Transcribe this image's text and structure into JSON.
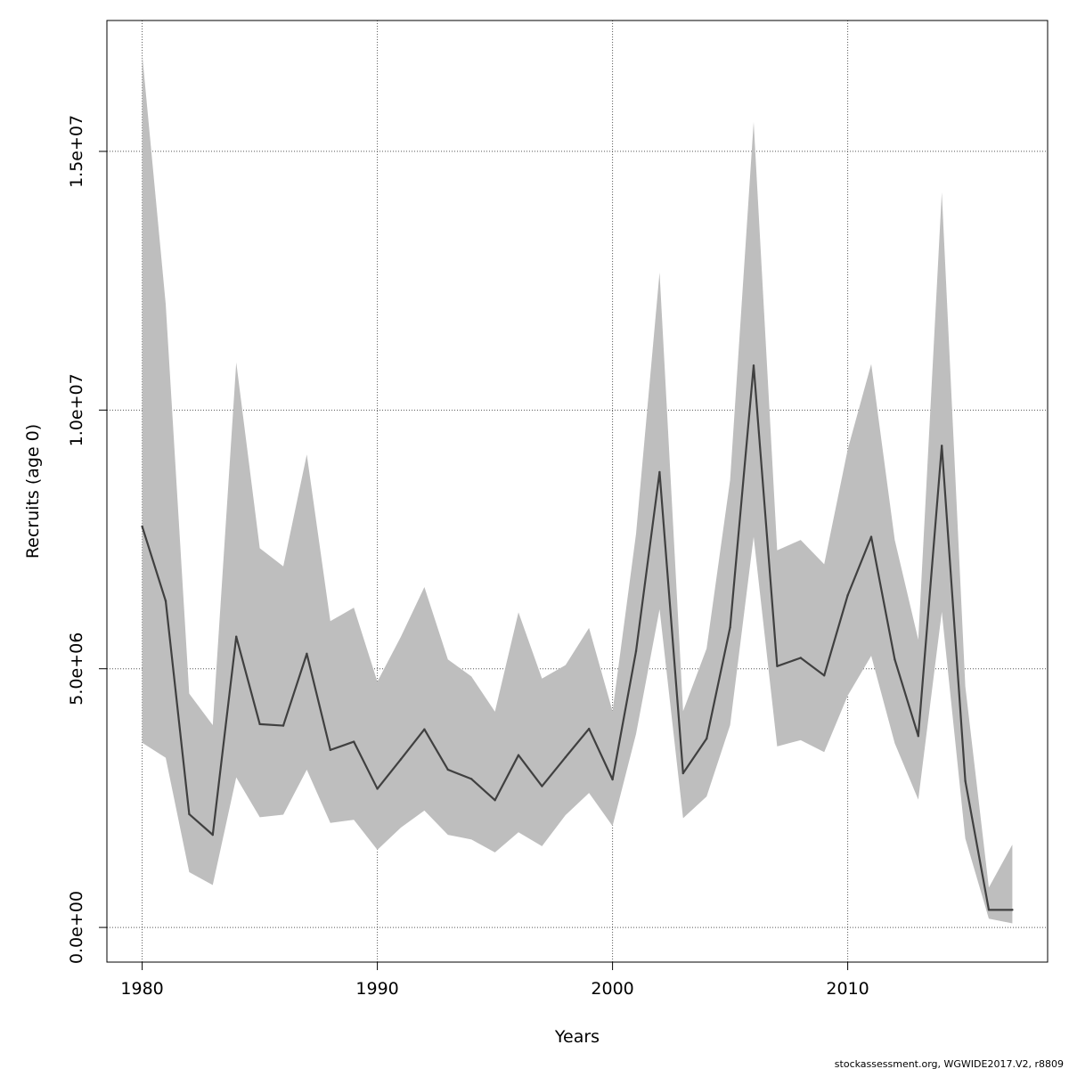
{
  "chart_data": {
    "type": "line",
    "title": "",
    "xlabel": "Years",
    "ylabel": "Recruits (age 0)",
    "xlim": [
      1978.5,
      2018.5
    ],
    "ylim": [
      -670000,
      17530000
    ],
    "x_ticks": [
      1980,
      1990,
      2000,
      2010
    ],
    "x_tick_labels": [
      "1980",
      "1990",
      "2000",
      "2010"
    ],
    "y_ticks": [
      0,
      5000000,
      10000000,
      15000000
    ],
    "y_tick_labels": [
      "0.0e+00",
      "5.0e+06",
      "1.0e+07",
      "1.5e+07"
    ],
    "grid": true,
    "years": [
      1980,
      1981,
      1982,
      1983,
      1984,
      1985,
      1986,
      1987,
      1988,
      1989,
      1990,
      1991,
      1992,
      1993,
      1994,
      1995,
      1996,
      1997,
      1998,
      1999,
      2000,
      2001,
      2002,
      2003,
      2004,
      2005,
      2006,
      2007,
      2008,
      2009,
      2010,
      2011,
      2012,
      2013,
      2014,
      2015,
      2016,
      2017
    ],
    "series": [
      {
        "values": [
          7750000,
          6310000,
          2190000,
          1790000,
          5620000,
          3930000,
          3900000,
          5290000,
          3430000,
          3590000,
          2680000,
          3250000,
          3830000,
          3050000,
          2870000,
          2460000,
          3330000,
          2730000,
          3290000,
          3840000,
          2860000,
          5340000,
          8800000,
          2980000,
          3650000,
          5800000,
          10860000,
          5050000,
          5210000,
          4870000,
          6420000,
          7550000,
          5180000,
          3700000,
          9310000,
          2830000,
          340000,
          340000
        ]
      }
    ],
    "band": {
      "upper": [
        16880000,
        12050000,
        4520000,
        3910000,
        10920000,
        7330000,
        6980000,
        9140000,
        5920000,
        6180000,
        4750000,
        5620000,
        6580000,
        5180000,
        4850000,
        4170000,
        6090000,
        4810000,
        5070000,
        5790000,
        4180000,
        7610000,
        12660000,
        4180000,
        5390000,
        8650000,
        15570000,
        7290000,
        7490000,
        7020000,
        9240000,
        10890000,
        7490000,
        5560000,
        14210000,
        4660000,
        770000,
        1600000
      ],
      "lower": [
        3570000,
        3280000,
        1070000,
        820000,
        2900000,
        2130000,
        2180000,
        3050000,
        2020000,
        2080000,
        1500000,
        1930000,
        2260000,
        1790000,
        1700000,
        1450000,
        1840000,
        1570000,
        2170000,
        2600000,
        1960000,
        3740000,
        6150000,
        2110000,
        2530000,
        3910000,
        7550000,
        3500000,
        3620000,
        3390000,
        4480000,
        5250000,
        3560000,
        2470000,
        6100000,
        1720000,
        170000,
        80000
      ]
    },
    "footer": "stockassessment.org, WGWIDE2017.V2, r8809"
  }
}
